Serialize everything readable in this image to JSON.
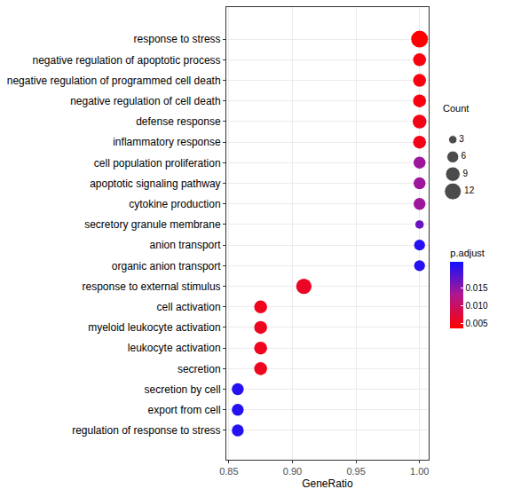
{
  "chart_data": {
    "type": "scatter",
    "x_label": "GeneRatio",
    "categories": [
      "response to stress",
      "negative regulation of apoptotic process",
      "negative regulation of programmed cell death",
      "negative regulation of cell death",
      "defense response",
      "inflammatory response",
      "cell population proliferation",
      "apoptotic signaling pathway",
      "cytokine production",
      "secretory granule membrane",
      "anion transport",
      "organic anion transport",
      "response to external stimulus",
      "cell activation",
      "myeloid leukocyte activation",
      "leukocyte activation",
      "secretion",
      "secretion by cell",
      "export from cell",
      "regulation of response to stress"
    ],
    "values": [
      1.0,
      1.0,
      1.0,
      1.0,
      1.0,
      1.0,
      1.0,
      1.0,
      1.0,
      1.0,
      1.0,
      1.0,
      0.909,
      0.875,
      0.875,
      0.875,
      0.875,
      0.857,
      0.857,
      0.857
    ],
    "sizes": [
      12,
      7,
      7,
      7,
      8,
      7,
      6,
      6,
      6,
      3,
      5,
      5,
      10,
      7,
      7,
      7,
      7,
      6,
      6,
      6
    ],
    "size_title": "Count",
    "size_ticks": [
      3,
      6,
      9,
      12
    ],
    "color_values": [
      0.0037,
      0.0045,
      0.0045,
      0.0045,
      0.005,
      0.005,
      0.014,
      0.014,
      0.014,
      0.017,
      0.021,
      0.021,
      0.006,
      0.0055,
      0.0055,
      0.0055,
      0.0055,
      0.021,
      0.021,
      0.021
    ],
    "color_title": "p.adjust",
    "colorbar_range": [
      0.0036,
      0.0222
    ],
    "colorbar_ticks": [
      0.005,
      {
        "value": 0.01,
        "label": "0.010"
      },
      0.015
    ],
    "xlim": [
      0.848,
      1.007
    ],
    "xticks": [
      0.85,
      {
        "value": 0.9,
        "label": "0.90"
      },
      0.95,
      {
        "value": 1.0,
        "label": "1.00"
      }
    ],
    "grid": true
  }
}
